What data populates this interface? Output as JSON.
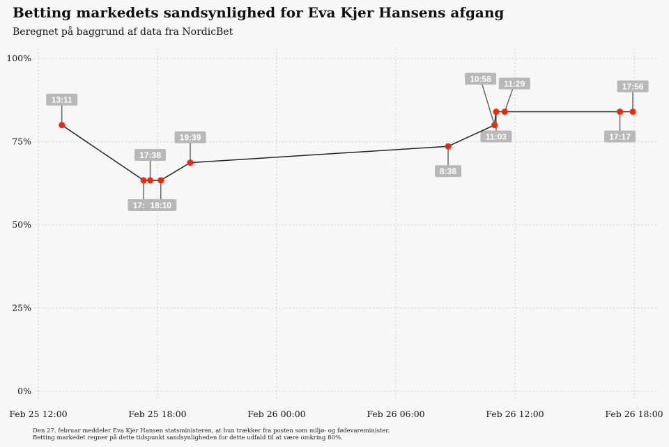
{
  "title": "Betting markedets sandsynlighed for Eva Kjer Hansens afgang",
  "subtitle": "Beregnet på baggrund af data fra NordicBet",
  "note": [
    "Den 27. februar meddeler Eva Kjer Hansen statsministeren, at hun trækker fra posten som miljø- og fødevareminister.",
    "Betting markedet regner på dette tidspunkt sandsynligheden for dette udfald til at være omkring 80%."
  ],
  "colors": {
    "point": "#ff2200",
    "line": "#222222",
    "label_bg": "#b8b8b8",
    "grid": "#cccccc"
  },
  "chart_data": {
    "type": "line",
    "title": "Betting markedets sandsynlighed for Eva Kjer Hansens afgang",
    "xlabel": "",
    "ylabel": "",
    "x_unit": "hours since Feb 25 12:00",
    "xlim": [
      -1.5,
      31.2
    ],
    "ylim": [
      0,
      100
    ],
    "x_ticks": [
      {
        "value": 0,
        "label": "Feb 25 12:00"
      },
      {
        "value": 6,
        "label": "Feb 25 18:00"
      },
      {
        "value": 12,
        "label": "Feb 26 00:00"
      },
      {
        "value": 18,
        "label": "Feb 26 06:00"
      },
      {
        "value": 24,
        "label": "Feb 26 12:00"
      },
      {
        "value": 30,
        "label": "Feb 26 18:00"
      }
    ],
    "y_ticks": [
      {
        "value": 0,
        "label": "0%"
      },
      {
        "value": 25,
        "label": "25%"
      },
      {
        "value": 50,
        "label": "50%"
      },
      {
        "value": 75,
        "label": "75%"
      },
      {
        "value": 100,
        "label": "100%"
      }
    ],
    "grid": true,
    "points": [
      {
        "x": 1.183,
        "y": 80,
        "label": "13:11",
        "label_pos": "above"
      },
      {
        "x": 5.3,
        "y": 63.4,
        "label": "17:18",
        "label_pos": "below"
      },
      {
        "x": 5.633,
        "y": 63.4,
        "label": "17:38",
        "label_pos": "above"
      },
      {
        "x": 6.167,
        "y": 63.4,
        "label": "18:10",
        "label_pos": "below"
      },
      {
        "x": 7.65,
        "y": 68.7,
        "label": "19:39",
        "label_pos": "above"
      },
      {
        "x": 20.633,
        "y": 73.6,
        "label": "8:38",
        "label_pos": "below"
      },
      {
        "x": 22.967,
        "y": 80,
        "label": "10:58",
        "label_pos": "above-left"
      },
      {
        "x": 23.05,
        "y": 84,
        "label": "11:03",
        "label_pos": "below"
      },
      {
        "x": 23.483,
        "y": 84,
        "label": "11:29",
        "label_pos": "above-right"
      },
      {
        "x": 29.283,
        "y": 84,
        "label": "17:17",
        "label_pos": "below"
      },
      {
        "x": 29.933,
        "y": 84,
        "label": "17:56",
        "label_pos": "above"
      }
    ]
  }
}
